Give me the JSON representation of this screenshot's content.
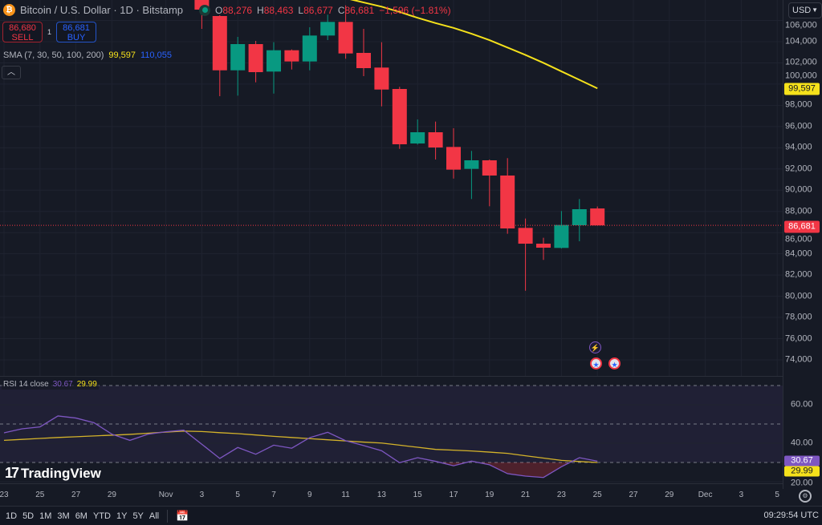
{
  "header": {
    "symbol_title": "Bitcoin / U.S. Dollar · 1D · Bitstamp",
    "ohlc": {
      "o_label": "O",
      "o": "88,276",
      "h_label": "H",
      "h": "88,463",
      "l_label": "L",
      "l": "86,677",
      "c_label": "C",
      "c": "86,681",
      "change": "−1,596 (−1.81%)"
    }
  },
  "trade": {
    "sell_price": "86,680",
    "sell_label": "SELL",
    "spread": "1",
    "buy_price": "86,681",
    "buy_label": "BUY"
  },
  "sma": {
    "label": "SMA (7, 30, 50, 100, 200)",
    "value1": "99,597",
    "value2": "110,055"
  },
  "rsi_legend": {
    "label": "RSI 14 close",
    "value": "30.67",
    "ma_value": "29.99"
  },
  "currency": "USD",
  "price_labels": {
    "last": "86,681",
    "sma": "99,597",
    "rsi": "30.67",
    "rsi_ma": "29.99"
  },
  "logo": "TradingView",
  "bottom": {
    "ranges": [
      "1D",
      "5D",
      "1M",
      "3M",
      "6M",
      "YTD",
      "1Y",
      "5Y",
      "All"
    ],
    "time": "09:29:54 UTC"
  },
  "colors": {
    "background": "#161a25",
    "up": "#089981",
    "down": "#f23645",
    "sma": "#f5e11b",
    "rsi": "#7e57c2",
    "rsi_ma": "#d4b32a",
    "buy": "#2962ff"
  },
  "chart_data": [
    {
      "type": "candlestick",
      "x_tick_labels": [
        "23",
        "25",
        "27",
        "29",
        "Nov",
        "3",
        "5",
        "7",
        "9",
        "11",
        "13",
        "15",
        "17",
        "19",
        "21",
        "23",
        "25",
        "27",
        "29",
        "Dec",
        "3",
        "5"
      ],
      "y_tick_labels": [
        "106,000",
        "104,000",
        "102,000",
        "100,000",
        "98,000",
        "96,000",
        "94,000",
        "92,000",
        "90,000",
        "88,000",
        "86,000",
        "84,000",
        "82,000",
        "80,000",
        "78,000",
        "76,000",
        "74,000"
      ],
      "ylim": [
        73000,
        108000
      ],
      "candles": [
        {
          "date": "Nov 3",
          "o": 108000,
          "h": 108500,
          "l": 105209,
          "c": 107023
        },
        {
          "date": "Nov 4",
          "o": 106418,
          "h": 106500,
          "l": 98861,
          "c": 101302
        },
        {
          "date": "Nov 5",
          "o": 101302,
          "h": 104453,
          "l": 98914,
          "c": 103773
        },
        {
          "date": "Nov 6",
          "o": 103773,
          "h": 104076,
          "l": 100169,
          "c": 101128
        },
        {
          "date": "Nov 7",
          "o": 101182,
          "h": 103949,
          "l": 99111,
          "c": 103192
        },
        {
          "date": "Nov 8",
          "o": 103192,
          "h": 103267,
          "l": 101378,
          "c": 102134
        },
        {
          "date": "Nov 9",
          "o": 102134,
          "h": 105360,
          "l": 101302,
          "c": 104579
        },
        {
          "date": "Nov 10",
          "o": 104579,
          "h": 106547,
          "l": 104151,
          "c": 105864
        },
        {
          "date": "Nov 11",
          "o": 105864,
          "h": 107423,
          "l": 102390,
          "c": 102890
        },
        {
          "date": "Nov 12",
          "o": 102942,
          "h": 105209,
          "l": 100750,
          "c": 101506
        },
        {
          "date": "Nov 13",
          "o": 101559,
          "h": 103949,
          "l": 97902,
          "c": 99488
        },
        {
          "date": "Nov 14",
          "o": 99541,
          "h": 99745,
          "l": 93896,
          "c": 94327
        },
        {
          "date": "Nov 15",
          "o": 94403,
          "h": 96670,
          "l": 94300,
          "c": 95461
        },
        {
          "date": "Nov 16",
          "o": 95461,
          "h": 96467,
          "l": 92891,
          "c": 94025
        },
        {
          "date": "Nov 17",
          "o": 94075,
          "h": 95839,
          "l": 91101,
          "c": 91935
        },
        {
          "date": "Nov 18",
          "o": 92009,
          "h": 93700,
          "l": 89166,
          "c": 92816
        },
        {
          "date": "Nov 19",
          "o": 92816,
          "h": 92891,
          "l": 88485,
          "c": 91381
        },
        {
          "date": "Nov 20",
          "o": 91381,
          "h": 93020,
          "l": 85889,
          "c": 86392
        },
        {
          "date": "Nov 21",
          "o": 86443,
          "h": 87325,
          "l": 80520,
          "c": 84955
        },
        {
          "date": "Nov 22",
          "o": 84955,
          "h": 85510,
          "l": 83422,
          "c": 84577
        },
        {
          "date": "Nov 23",
          "o": 84556,
          "h": 88032,
          "l": 84500,
          "c": 86720
        },
        {
          "date": "Nov 24",
          "o": 86695,
          "h": 89166,
          "l": 85183,
          "c": 88206
        },
        {
          "date": "Nov 25",
          "o": 88276,
          "h": 88463,
          "l": 86677,
          "c": 86681
        }
      ],
      "sma": {
        "dates": [
          "Nov 11",
          "Nov 12",
          "Nov 13",
          "Nov 14",
          "Nov 15",
          "Nov 16",
          "Nov 17",
          "Nov 18",
          "Nov 19",
          "Nov 20",
          "Nov 21",
          "Nov 22",
          "Nov 23",
          "Nov 24",
          "Nov 25"
        ],
        "values": [
          108100,
          107700,
          107300,
          106800,
          106250,
          105750,
          105300,
          104750,
          104150,
          103450,
          102750,
          102000,
          101200,
          100400,
          99597
        ]
      },
      "last_price": 86681
    },
    {
      "type": "line",
      "title": "RSI 14 close",
      "ylim": [
        18,
        72
      ],
      "y_tick_labels": [
        "60.00",
        "40.00",
        "20.00"
      ],
      "bands": [
        70,
        50,
        30
      ],
      "dates": [
        "Oct 23",
        "Oct 24",
        "Oct 25",
        "Oct 26",
        "Oct 27",
        "Oct 28",
        "Oct 29",
        "Oct 30",
        "Oct 31",
        "Nov 1",
        "Nov 2",
        "Nov 3",
        "Nov 4",
        "Nov 5",
        "Nov 6",
        "Nov 7",
        "Nov 8",
        "Nov 9",
        "Nov 10",
        "Nov 11",
        "Nov 12",
        "Nov 13",
        "Nov 14",
        "Nov 15",
        "Nov 16",
        "Nov 17",
        "Nov 18",
        "Nov 19",
        "Nov 20",
        "Nov 21",
        "Nov 22",
        "Nov 23",
        "Nov 24",
        "Nov 25"
      ],
      "series": [
        {
          "values": [
            45.4,
            47.5,
            48.5,
            54.2,
            53.1,
            50.7,
            44.7,
            41.5,
            44.7,
            46.0,
            46.8,
            39.5,
            32.1,
            37.8,
            34.3,
            39.0,
            37.4,
            42.9,
            45.7,
            41.3,
            38.8,
            36.1,
            29.9,
            32.5,
            30.6,
            28.3,
            30.7,
            28.8,
            24.2,
            22.9,
            22.2,
            27.8,
            32.5,
            30.67
          ]
        },
        {
          "values": [
            41.5,
            42.0,
            42.5,
            43.0,
            43.4,
            43.8,
            44.2,
            44.6,
            45.2,
            45.8,
            46.3,
            46.1,
            45.5,
            45.0,
            44.3,
            43.6,
            43.0,
            42.4,
            41.8,
            41.2,
            40.6,
            40.1,
            39.0,
            37.9,
            36.8,
            36.4,
            36.0,
            35.4,
            34.75,
            33.5,
            32.3,
            31.1,
            30.5,
            29.99
          ]
        }
      ]
    }
  ]
}
